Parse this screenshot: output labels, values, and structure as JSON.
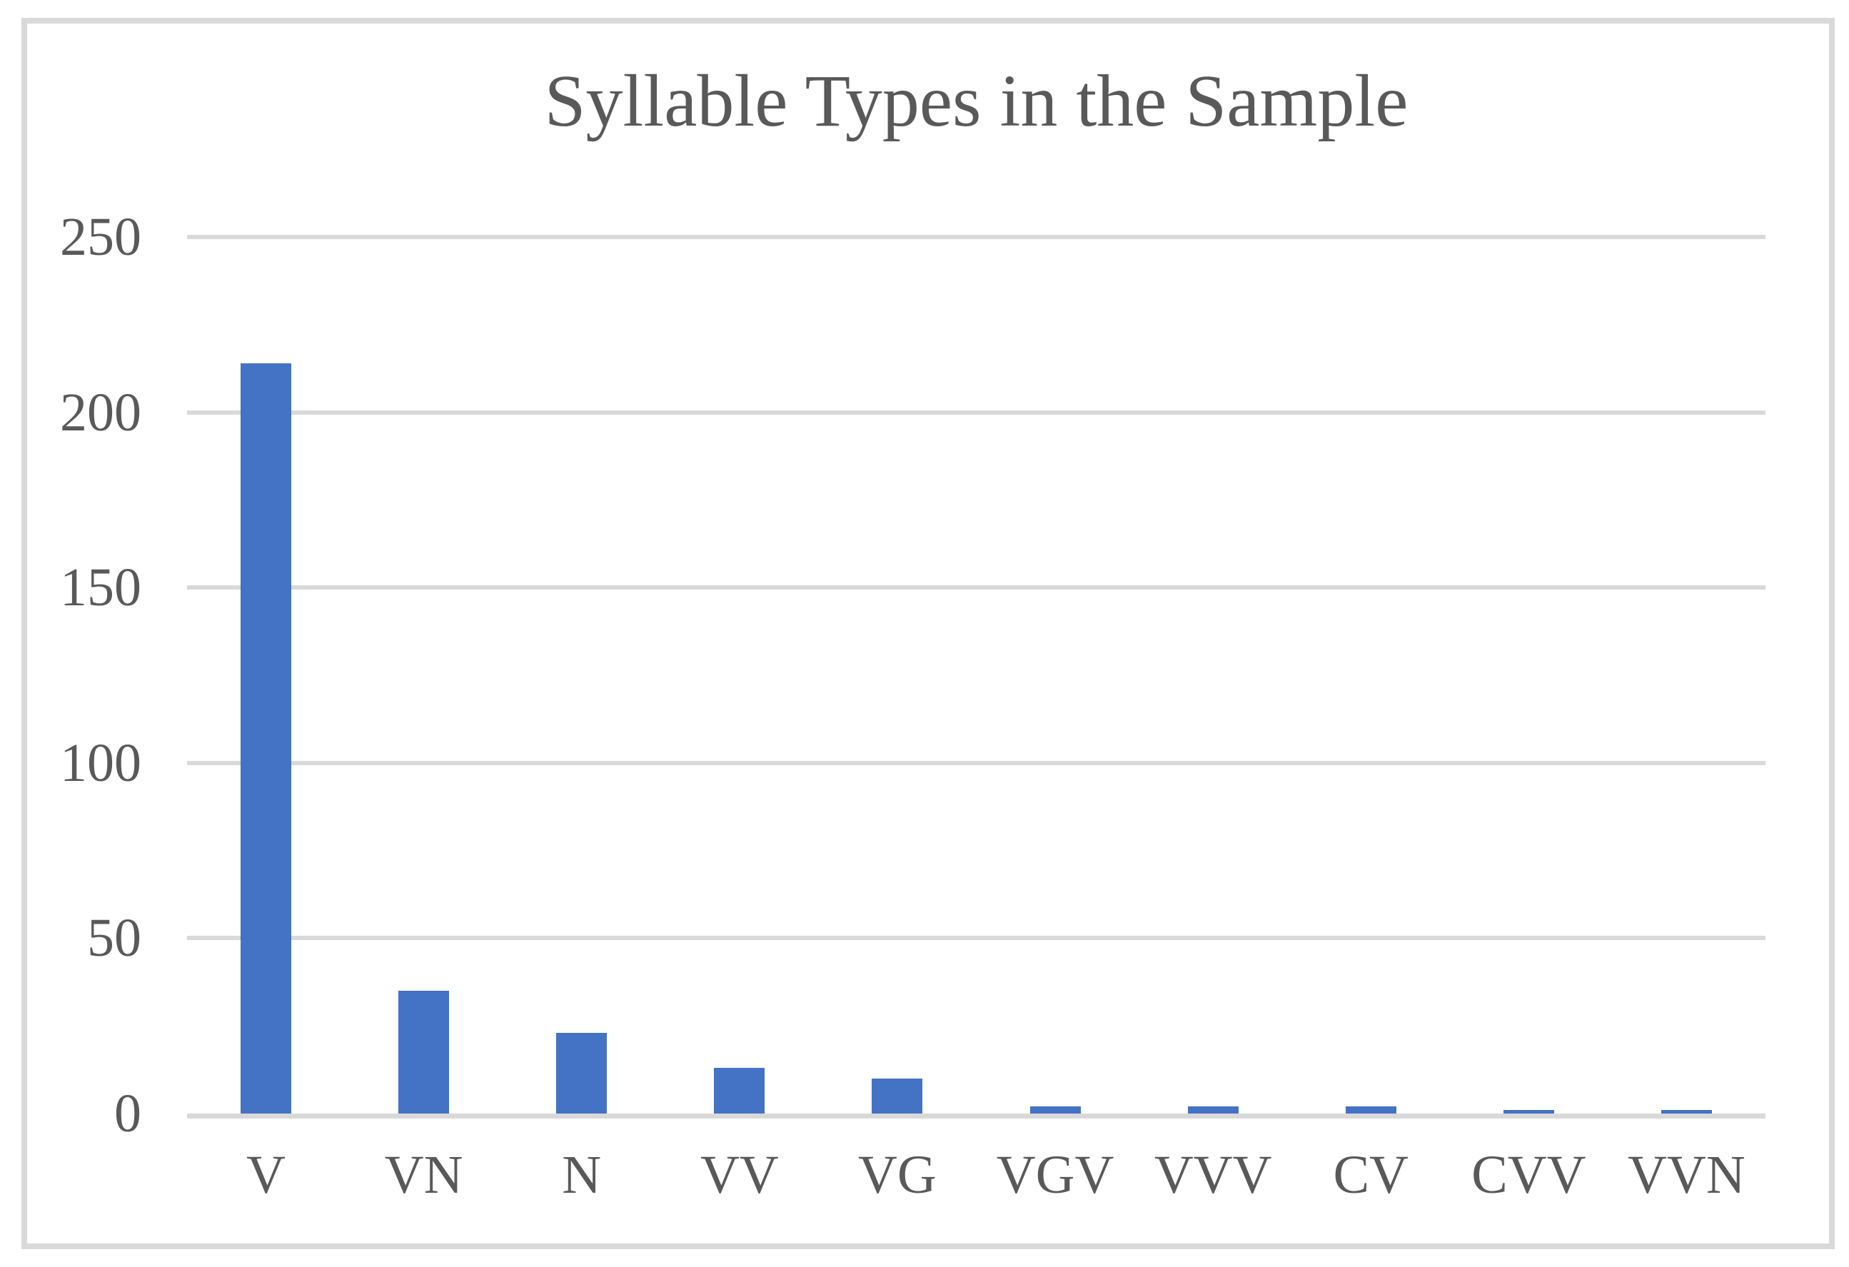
{
  "chart_data": {
    "type": "bar",
    "title": "Syllable Types in the Sample",
    "categories": [
      "V",
      "VN",
      "N",
      "VV",
      "VG",
      "VGV",
      "VVV",
      "CV",
      "CVV",
      "VVN"
    ],
    "values": [
      214,
      35,
      23,
      13,
      10,
      2,
      2,
      2,
      1,
      1
    ],
    "xlabel": "",
    "ylabel": "",
    "ylim": [
      0,
      250
    ],
    "yticks": [
      0,
      50,
      100,
      150,
      200,
      250
    ],
    "grid": true,
    "legend": false,
    "colors": {
      "bar": "#4472C4",
      "gridline": "#D9D9D9",
      "axis_line": "#D9D9D9",
      "text": "#595959",
      "frame_border": "#D9D9D9",
      "background": "#FFFFFF"
    }
  }
}
